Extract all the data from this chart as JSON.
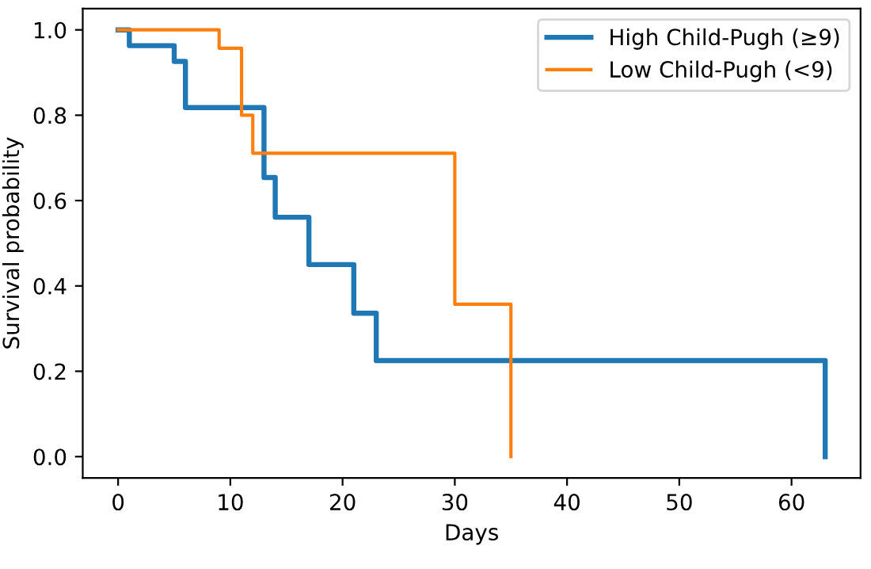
{
  "chart_data": {
    "type": "step",
    "xlabel": "Days",
    "ylabel": "Survival probability",
    "legend": "top right",
    "grid": false,
    "series": [
      {
        "name": "High Child-Pugh (≥9)",
        "color": "#1f77b4",
        "x": [
          0,
          1,
          5,
          6,
          13,
          14,
          17,
          21,
          23,
          63,
          63
        ],
        "values": [
          1.0,
          0.963,
          0.926,
          0.818,
          0.654,
          0.561,
          0.45,
          0.336,
          0.225,
          0.225,
          0.0
        ]
      },
      {
        "name": "Low Child-Pugh (<9)",
        "color": "#ff7f0e",
        "x": [
          0,
          9,
          11,
          12,
          30,
          35,
          35
        ],
        "values": [
          1.0,
          0.957,
          0.8,
          0.711,
          0.357,
          0.357,
          0.0
        ]
      }
    ],
    "xlim": [
      -3.15,
      66.15
    ],
    "ylim": [
      -0.05,
      1.05
    ],
    "xticks": [
      0,
      10,
      20,
      30,
      40,
      50,
      60
    ],
    "yticks": [
      {
        "value": 0,
        "label": "0.0"
      },
      {
        "value": 0.2,
        "label": "0.2"
      },
      {
        "value": 0.4,
        "label": "0.4"
      },
      {
        "value": 0.6,
        "label": "0.6"
      },
      {
        "value": 0.8,
        "label": "0.8"
      },
      {
        "value": 1,
        "label": "1.0"
      }
    ]
  }
}
